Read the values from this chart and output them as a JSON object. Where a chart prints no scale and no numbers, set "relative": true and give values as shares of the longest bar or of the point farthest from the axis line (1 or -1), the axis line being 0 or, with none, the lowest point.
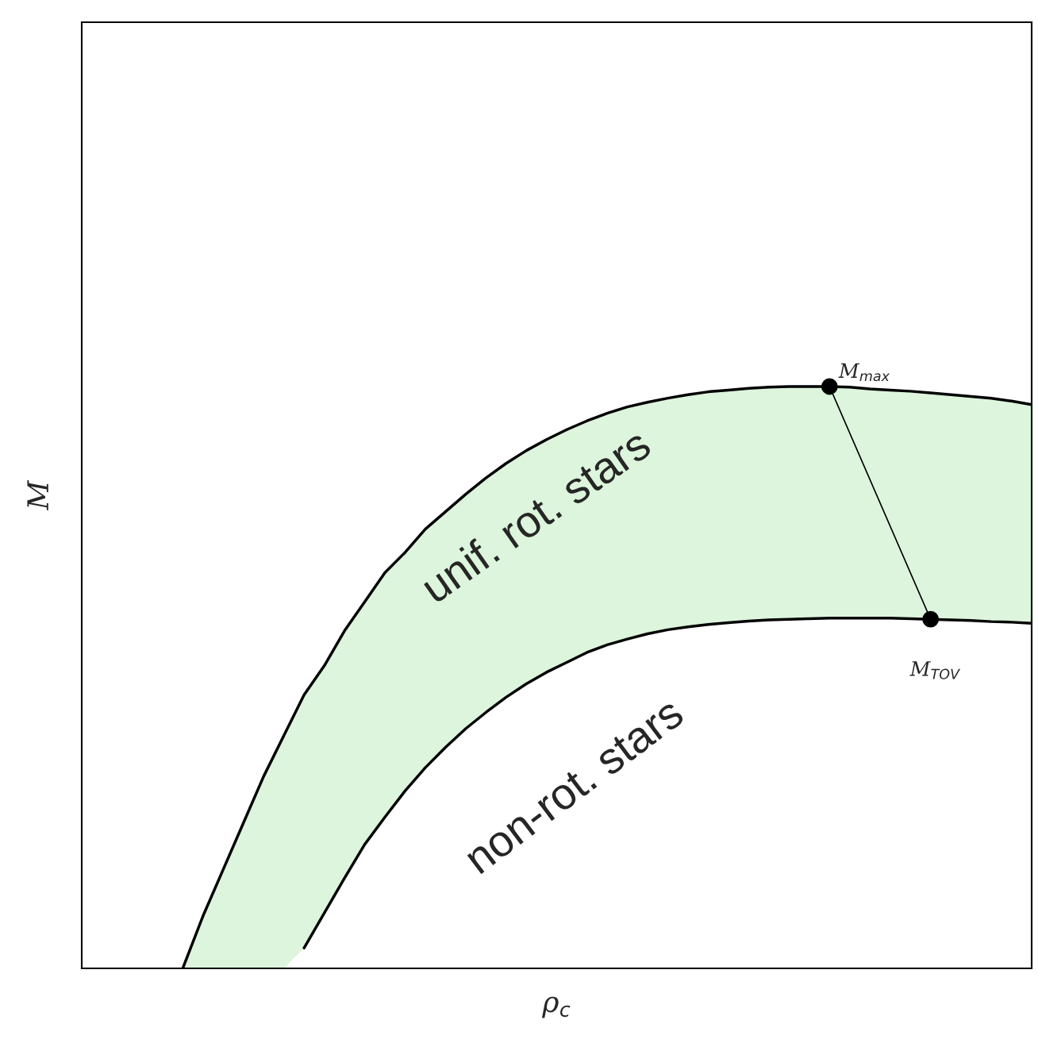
{
  "chart_data": {
    "type": "line",
    "relative": true,
    "xlabel": "ρ$_{c}$",
    "ylabel": "M",
    "legend": false,
    "categories": [
      null,
      null,
      null,
      null,
      null,
      null,
      null,
      null,
      null,
      null,
      null,
      null,
      null,
      null,
      null,
      null,
      null,
      null,
      null,
      null,
      null,
      null,
      null,
      null,
      null,
      null,
      null,
      null,
      null,
      null,
      null,
      null,
      null,
      null,
      null,
      null,
      null,
      null,
      null,
      null,
      null,
      null,
      null,
      null,
      null,
      null,
      null,
      null
    ],
    "series": [
      {
        "color": "#000000",
        "values": [
          null,
          null,
          null,
          null,
          null,
          0.0,
          0.09,
          0.17,
          0.25,
          0.33,
          0.4,
          0.47,
          0.52,
          0.58,
          0.63,
          0.68,
          0.715,
          0.755,
          0.785,
          0.815,
          0.843,
          0.868,
          0.89,
          0.909,
          0.926,
          0.941,
          0.954,
          0.965,
          0.973,
          0.98,
          0.986,
          0.991,
          0.994,
          0.997,
          0.999,
          1.0,
          1.0,
          1.0,
          0.999,
          0.996,
          0.994,
          0.992,
          0.989,
          0.986,
          0.983,
          0.98,
          0.975,
          0.969
        ],
        "lower": [
          null,
          null,
          null,
          null,
          null,
          0.0,
          0.0,
          0.0,
          0.0,
          0.0,
          0.0,
          0.035,
          0.095,
          0.155,
          0.213,
          0.26,
          0.305,
          0.345,
          0.38,
          0.412,
          0.44,
          0.466,
          0.489,
          0.509,
          0.526,
          0.543,
          0.556,
          0.566,
          0.575,
          0.582,
          0.587,
          0.591,
          0.594,
          0.597,
          0.599,
          0.6,
          0.601,
          0.602,
          0.602,
          0.602,
          0.602,
          0.601,
          0.6,
          0.599,
          0.598,
          0.596,
          0.595,
          0.593
        ],
        "upper": [
          null,
          null,
          null,
          null,
          null,
          0.0,
          0.09,
          0.17,
          0.25,
          0.33,
          0.4,
          0.47,
          0.52,
          0.58,
          0.63,
          0.68,
          0.715,
          0.755,
          0.785,
          0.815,
          0.843,
          0.868,
          0.89,
          0.909,
          0.926,
          0.941,
          0.954,
          0.965,
          0.973,
          0.98,
          0.986,
          0.991,
          0.994,
          0.997,
          0.999,
          1.0,
          1.0,
          1.0,
          0.999,
          0.996,
          0.994,
          0.992,
          0.989,
          0.986,
          0.983,
          0.98,
          0.975,
          0.969
        ]
      },
      {
        "color": "#000000",
        "values": [
          null,
          null,
          null,
          null,
          null,
          null,
          null,
          null,
          null,
          null,
          null,
          0.035,
          0.095,
          0.155,
          0.213,
          0.26,
          0.305,
          0.345,
          0.38,
          0.412,
          0.44,
          0.466,
          0.489,
          0.509,
          0.526,
          0.543,
          0.556,
          0.566,
          0.575,
          0.582,
          0.587,
          0.591,
          0.594,
          0.597,
          0.599,
          0.6,
          0.601,
          0.602,
          0.602,
          0.602,
          0.602,
          0.601,
          0.6,
          0.599,
          0.598,
          0.596,
          0.595,
          0.593
        ]
      },
      {
        "color": "#000000",
        "marker": "circle",
        "values": [
          null,
          null,
          null,
          null,
          null,
          null,
          null,
          null,
          null,
          null,
          null,
          null,
          null,
          null,
          null,
          null,
          null,
          null,
          null,
          null,
          null,
          null,
          null,
          null,
          null,
          null,
          null,
          null,
          null,
          null,
          null,
          null,
          null,
          null,
          null,
          null,
          null,
          1.0,
          null,
          null,
          null,
          null,
          0.6,
          null,
          null,
          null,
          null,
          null
        ]
      }
    ],
    "annotations": [
      "unif. rot. stars",
      "non-rot. stars",
      "M$_{max}$",
      "M$_{TOV}$"
    ]
  }
}
